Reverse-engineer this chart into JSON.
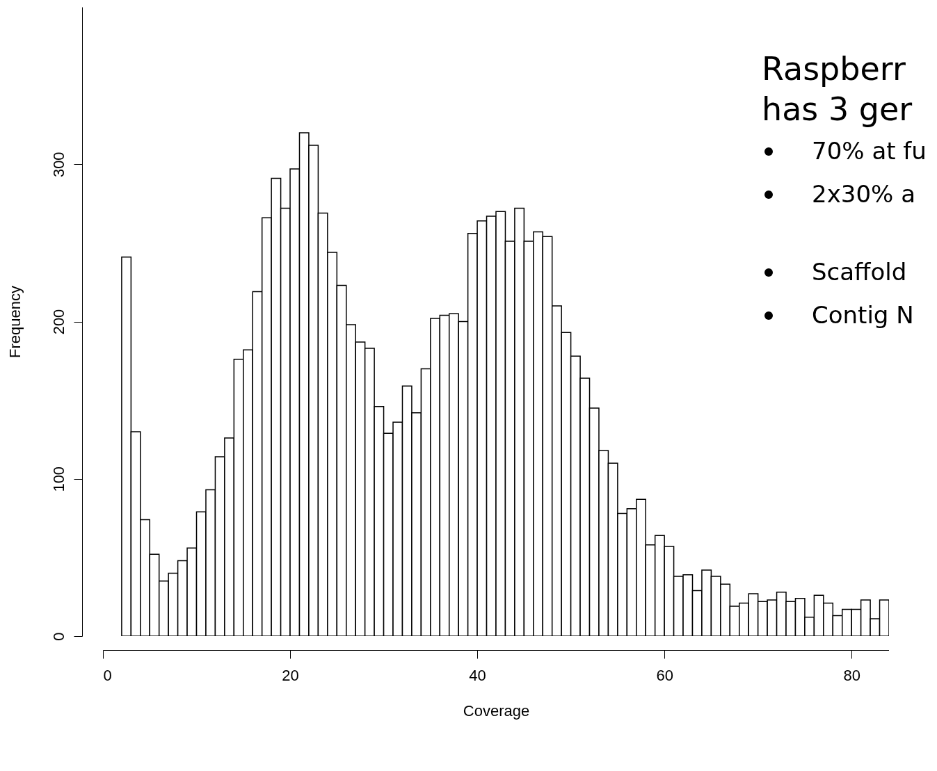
{
  "chart_data": {
    "type": "histogram",
    "xlabel": "Coverage",
    "ylabel": "Frequency",
    "bins": [
      0,
      1,
      2,
      3,
      4,
      5,
      6,
      7,
      8,
      9,
      10,
      11,
      12,
      13,
      14,
      15,
      16,
      17,
      18,
      19,
      20,
      21,
      22,
      23,
      24,
      25,
      26,
      27,
      28,
      29,
      30,
      31,
      32,
      33,
      34,
      35,
      36,
      37,
      38,
      39,
      40,
      41,
      42,
      43,
      44,
      45,
      46,
      47,
      48,
      49,
      50,
      51,
      52,
      53,
      54,
      55,
      56,
      57,
      58,
      59,
      60,
      61,
      62,
      63,
      64,
      65,
      66,
      67,
      68,
      69,
      70,
      71,
      72,
      73,
      74,
      75,
      76,
      77,
      78,
      79,
      80,
      81,
      82,
      83,
      84
    ],
    "values": [
      null,
      null,
      241,
      130,
      74,
      52,
      35,
      40,
      48,
      56,
      79,
      93,
      114,
      126,
      176,
      182,
      219,
      266,
      291,
      272,
      297,
      320,
      312,
      269,
      244,
      223,
      198,
      187,
      183,
      146,
      129,
      136,
      159,
      142,
      170,
      202,
      204,
      205,
      200,
      256,
      264,
      267,
      270,
      251,
      272,
      251,
      257,
      254,
      210,
      193,
      178,
      164,
      145,
      118,
      110,
      78,
      81,
      87,
      58,
      64,
      57,
      38,
      39,
      29,
      42,
      38,
      33,
      19,
      21,
      27,
      22,
      23,
      28,
      22,
      24,
      12,
      26,
      21,
      13,
      17,
      17,
      23,
      11,
      23
    ],
    "color": "#ffffff",
    "xlim": [
      0,
      84
    ],
    "xticks": [
      0,
      20,
      40,
      60,
      80
    ],
    "ylim": [
      0,
      400
    ],
    "yticks": [
      0,
      100,
      200,
      300
    ],
    "grid": false,
    "annotations": [
      "Raspberr",
      "has 3 ger",
      "70% at fu",
      "2x30% a",
      "Scaffold",
      "Contig N"
    ]
  }
}
